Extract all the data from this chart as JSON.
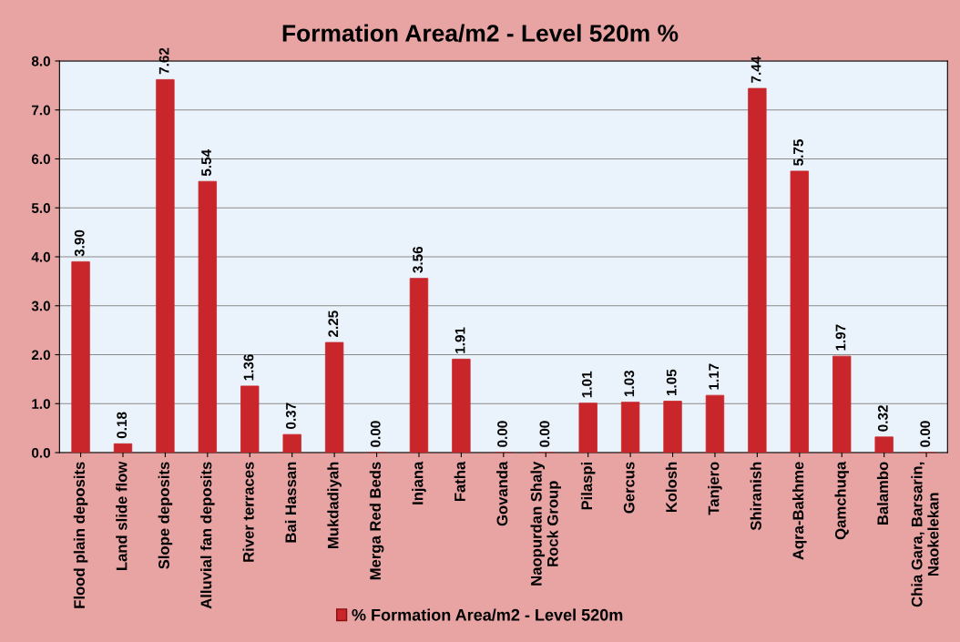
{
  "chart_data": {
    "type": "bar",
    "title": "Formation Area/m2 - Level 520m %",
    "categories": [
      "Flood plain deposits",
      "Land slide flow",
      "Slope deposits",
      "Alluvial fan deposits",
      "River terraces",
      "Bai Hassan",
      "Mukdadiyah",
      "Merga Red Beds",
      "Injana",
      "Fatha",
      "Govanda",
      "Naopurdan Shaly\nRock Group",
      "Pilaspi",
      "Gercus",
      "Kolosh",
      "Tanjero",
      "Shiranish",
      "Aqra-Bakhme",
      "Qamchuqa",
      "Balambo",
      "Chia Gara, Barsarin,\nNaokelekan"
    ],
    "series": [
      {
        "name": "% Formation Area/m2 - Level 520m",
        "color": "#c8262a",
        "values": [
          3.9,
          0.18,
          7.62,
          5.54,
          1.36,
          0.37,
          2.25,
          0.0,
          3.56,
          1.91,
          0.0,
          0.0,
          1.01,
          1.03,
          1.05,
          1.17,
          7.44,
          5.75,
          1.97,
          0.32,
          0.0
        ],
        "value_labels": [
          "3.90",
          "0.18",
          "7.62",
          "5.54",
          "1.36",
          "0.37",
          "2.25",
          "0.00",
          "3.56",
          "1.91",
          "0.00",
          "0.00",
          "1.01",
          "1.03",
          "1.05",
          "1.17",
          "7.44",
          "5.75",
          "1.97",
          "0.32",
          "0.00"
        ]
      }
    ],
    "ylim": [
      0,
      8
    ],
    "yticks": [
      {
        "value": 0,
        "label": "0.0"
      },
      {
        "value": 1,
        "label": "1.0"
      },
      {
        "value": 2,
        "label": "2.0"
      },
      {
        "value": 3,
        "label": "3.0"
      },
      {
        "value": 4,
        "label": "4.0"
      },
      {
        "value": 5,
        "label": "5.0"
      },
      {
        "value": 6,
        "label": "6.0"
      },
      {
        "value": 7,
        "label": "7.0"
      },
      {
        "value": 8,
        "label": "8.0"
      }
    ],
    "grid": "y",
    "legend": "bottom"
  }
}
